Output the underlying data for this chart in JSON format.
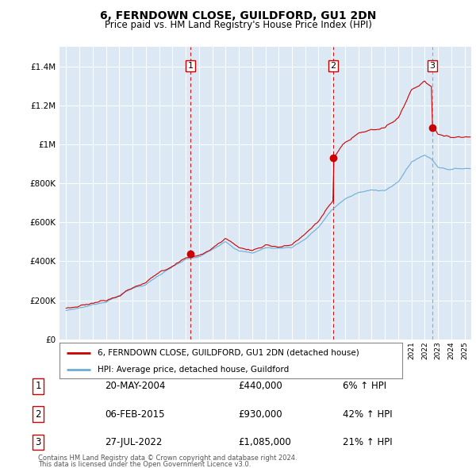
{
  "title": "6, FERNDOWN CLOSE, GUILDFORD, GU1 2DN",
  "subtitle": "Price paid vs. HM Land Registry's House Price Index (HPI)",
  "legend_label_red": "6, FERNDOWN CLOSE, GUILDFORD, GU1 2DN (detached house)",
  "legend_label_blue": "HPI: Average price, detached house, Guildford",
  "footer_line1": "Contains HM Land Registry data © Crown copyright and database right 2024.",
  "footer_line2": "This data is licensed under the Open Government Licence v3.0.",
  "transactions": [
    {
      "num": 1,
      "date": "20-MAY-2004",
      "price": 440000,
      "year": 2004.38,
      "hpi_pct": "6% ↑ HPI",
      "vline_color": "#cc0000",
      "vline_style": "--"
    },
    {
      "num": 2,
      "date": "06-FEB-2015",
      "price": 930000,
      "year": 2015.1,
      "hpi_pct": "42% ↑ HPI",
      "vline_color": "#cc0000",
      "vline_style": "--"
    },
    {
      "num": 3,
      "date": "27-JUL-2022",
      "price": 1085000,
      "year": 2022.56,
      "hpi_pct": "21% ↑ HPI",
      "vline_color": "#999999",
      "vline_style": "--"
    }
  ],
  "hpi_color": "#6baed6",
  "price_color": "#cc0000",
  "bg_color": "#dce9f5",
  "grid_color": "#ffffff",
  "ylim": [
    0,
    1500000
  ],
  "xlim_start": 1994.5,
  "xlim_end": 2025.5
}
